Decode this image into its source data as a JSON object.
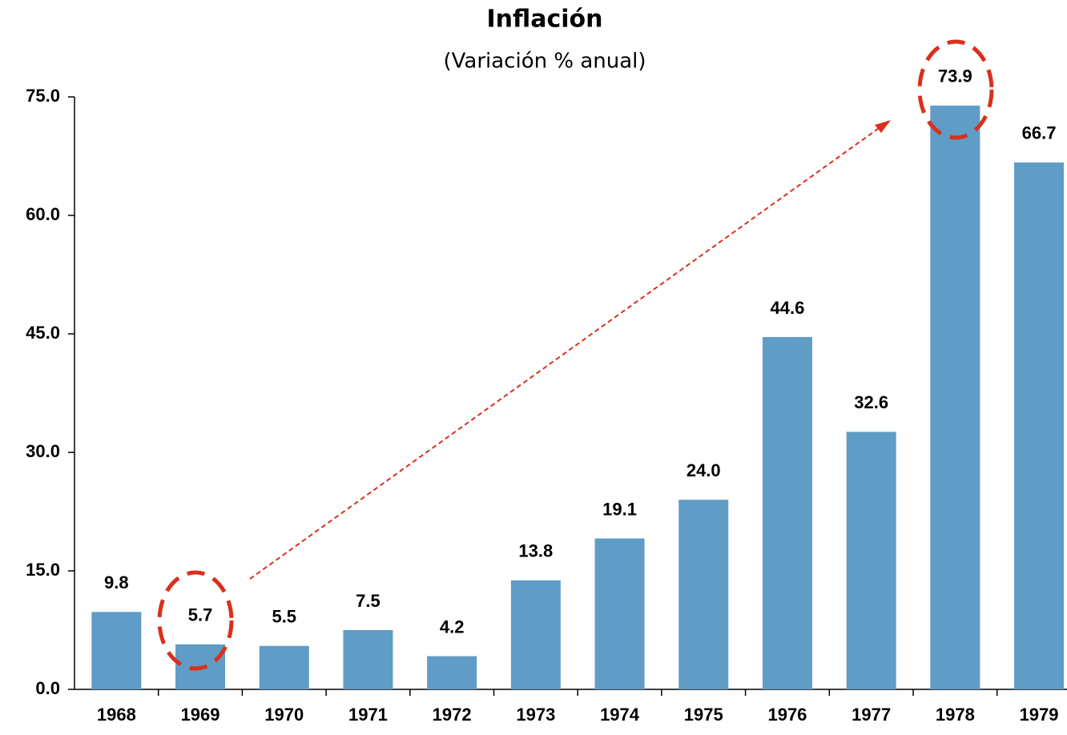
{
  "chart_data": {
    "type": "bar",
    "title": "Inflación",
    "subtitle": "(Variación % anual)",
    "categories": [
      "1968",
      "1969",
      "1970",
      "1971",
      "1972",
      "1973",
      "1974",
      "1975",
      "1976",
      "1977",
      "1978",
      "1979"
    ],
    "values": [
      9.8,
      5.7,
      5.5,
      7.5,
      4.2,
      13.8,
      19.1,
      24.0,
      44.6,
      32.6,
      73.9,
      66.7
    ],
    "value_labels": [
      "9.8",
      "5.7",
      "5.5",
      "7.5",
      "4.2",
      "13.8",
      "19.1",
      "24.0",
      "44.6",
      "32.6",
      "73.9",
      "66.7"
    ],
    "color": "#5f9cc6",
    "ylim": [
      0,
      75
    ],
    "yticks": [
      {
        "value": 0,
        "label": "0.0"
      },
      {
        "value": 15,
        "label": "15.0"
      },
      {
        "value": 30,
        "label": "30.0"
      },
      {
        "value": 45,
        "label": "45.0"
      },
      {
        "value": 60,
        "label": "60.0"
      },
      {
        "value": 75,
        "label": "75.0"
      }
    ],
    "grid": false
  }
}
